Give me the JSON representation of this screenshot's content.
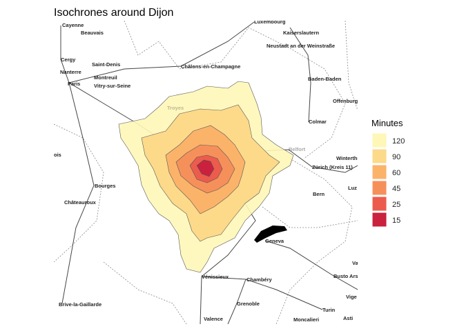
{
  "title": "Isochrones around Dijon",
  "legend": {
    "title": "Minutes",
    "items": [
      "120",
      "90",
      "60",
      "45",
      "25",
      "15"
    ]
  },
  "cities": [
    "Cayenne",
    "Beauvais",
    "Cergy",
    "Saint-Denis",
    "Nanterre",
    "Montreuil",
    "Paris",
    "Vitry-sur-Seine",
    "Châlons-en-Champagne",
    "Luxembourg",
    "Kaiserslautern",
    "Neustadt an der Weinstraße",
    "Baden-Baden",
    "Offenburg",
    "Troyes",
    "Colmar",
    "Belfort",
    "Winterthur",
    "Zürich (Kreis 11)",
    "Bourges",
    "Luz",
    "Châteauroux",
    "Bern",
    "Geneva",
    "Vénissieux",
    "Chambéry",
    "Busto Ars",
    "Vige",
    "Brive-la-Gaillarde",
    "Grenoble",
    "Turin",
    "Valence",
    "Moncalieri",
    "Asti",
    "Va",
    "ois"
  ]
}
